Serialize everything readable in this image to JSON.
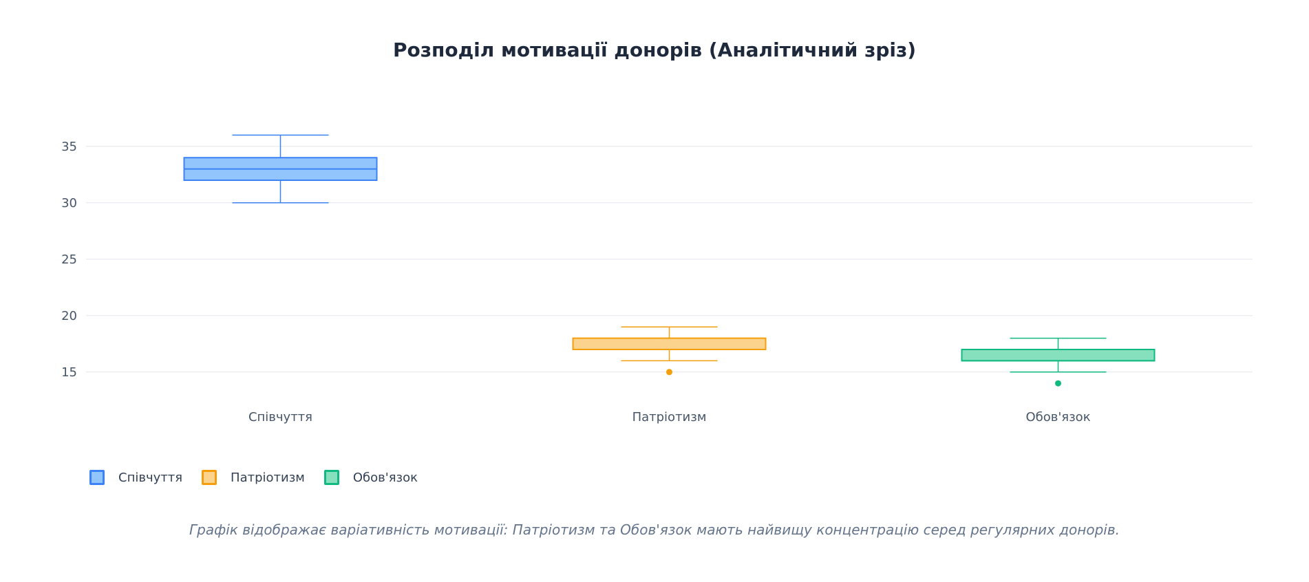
{
  "chart_data": {
    "type": "box",
    "title": "Розподіл мотивації донорів (Аналітичний зріз)",
    "caption": "Графік відображає варіативність мотивації: Патріотизм та Обов'язок мають найвищу концентрацію серед регулярних донорів.",
    "categories": [
      "Співчуття",
      "Патріотизм",
      "Обов'язок"
    ],
    "ylim": [
      12,
      37
    ],
    "yticks": [
      15,
      20,
      25,
      30,
      35
    ],
    "grid": true,
    "legend_position": "bottom-left",
    "series": [
      {
        "name": "Співчуття",
        "min": 30,
        "q1": 32,
        "median": 33,
        "q3": 34,
        "max": 36,
        "outliers": [],
        "line_color": "#3b82f6",
        "fill_color": "#93c5fd"
      },
      {
        "name": "Патріотизм",
        "min": 16,
        "q1": 17,
        "median": 17,
        "q3": 18,
        "max": 19,
        "outliers": [
          15
        ],
        "line_color": "#f59e0b",
        "fill_color": "#fcd38d"
      },
      {
        "name": "Обов'язок",
        "min": 15,
        "q1": 16,
        "median": 16,
        "q3": 17,
        "max": 18,
        "outliers": [
          14
        ],
        "line_color": "#10b981",
        "fill_color": "#86e0bd"
      }
    ]
  }
}
